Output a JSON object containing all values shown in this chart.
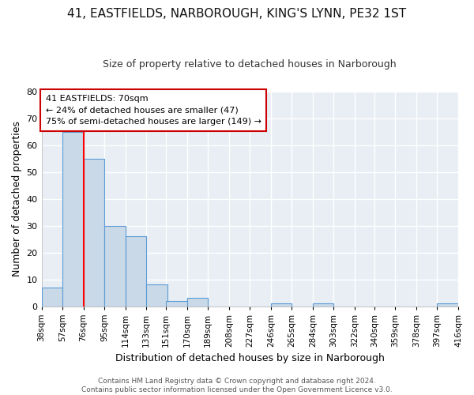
{
  "title": "41, EASTFIELDS, NARBOROUGH, KING'S LYNN, PE32 1ST",
  "subtitle": "Size of property relative to detached houses in Narborough",
  "xlabel": "Distribution of detached houses by size in Narborough",
  "ylabel": "Number of detached properties",
  "bins": [
    38,
    57,
    76,
    95,
    114,
    133,
    151,
    170,
    189,
    208,
    227,
    246,
    265,
    284,
    303,
    322,
    340,
    359,
    378,
    397,
    416
  ],
  "bin_labels": [
    "38sqm",
    "57sqm",
    "76sqm",
    "95sqm",
    "114sqm",
    "133sqm",
    "151sqm",
    "170sqm",
    "189sqm",
    "208sqm",
    "227sqm",
    "246sqm",
    "265sqm",
    "284sqm",
    "303sqm",
    "322sqm",
    "340sqm",
    "359sqm",
    "378sqm",
    "397sqm",
    "416sqm"
  ],
  "counts": [
    7,
    65,
    55,
    30,
    26,
    8,
    2,
    3,
    0,
    0,
    0,
    1,
    0,
    1,
    0,
    0,
    0,
    0,
    0,
    1,
    0
  ],
  "bar_color": "#c9d9e8",
  "bar_edge_color": "#5b9bd5",
  "red_line_x": 76,
  "ylim": [
    0,
    80
  ],
  "yticks": [
    0,
    10,
    20,
    30,
    40,
    50,
    60,
    70,
    80
  ],
  "annotation_text": "41 EASTFIELDS: 70sqm\n← 24% of detached houses are smaller (47)\n75% of semi-detached houses are larger (149) →",
  "annotation_box_color": "#ffffff",
  "annotation_box_edge": "#cc0000",
  "footer": "Contains HM Land Registry data © Crown copyright and database right 2024.\nContains public sector information licensed under the Open Government Licence v3.0.",
  "background_color": "#e8eef4",
  "grid_color": "#ffffff",
  "title_fontsize": 11,
  "subtitle_fontsize": 9,
  "ylabel_fontsize": 9,
  "xlabel_fontsize": 9
}
